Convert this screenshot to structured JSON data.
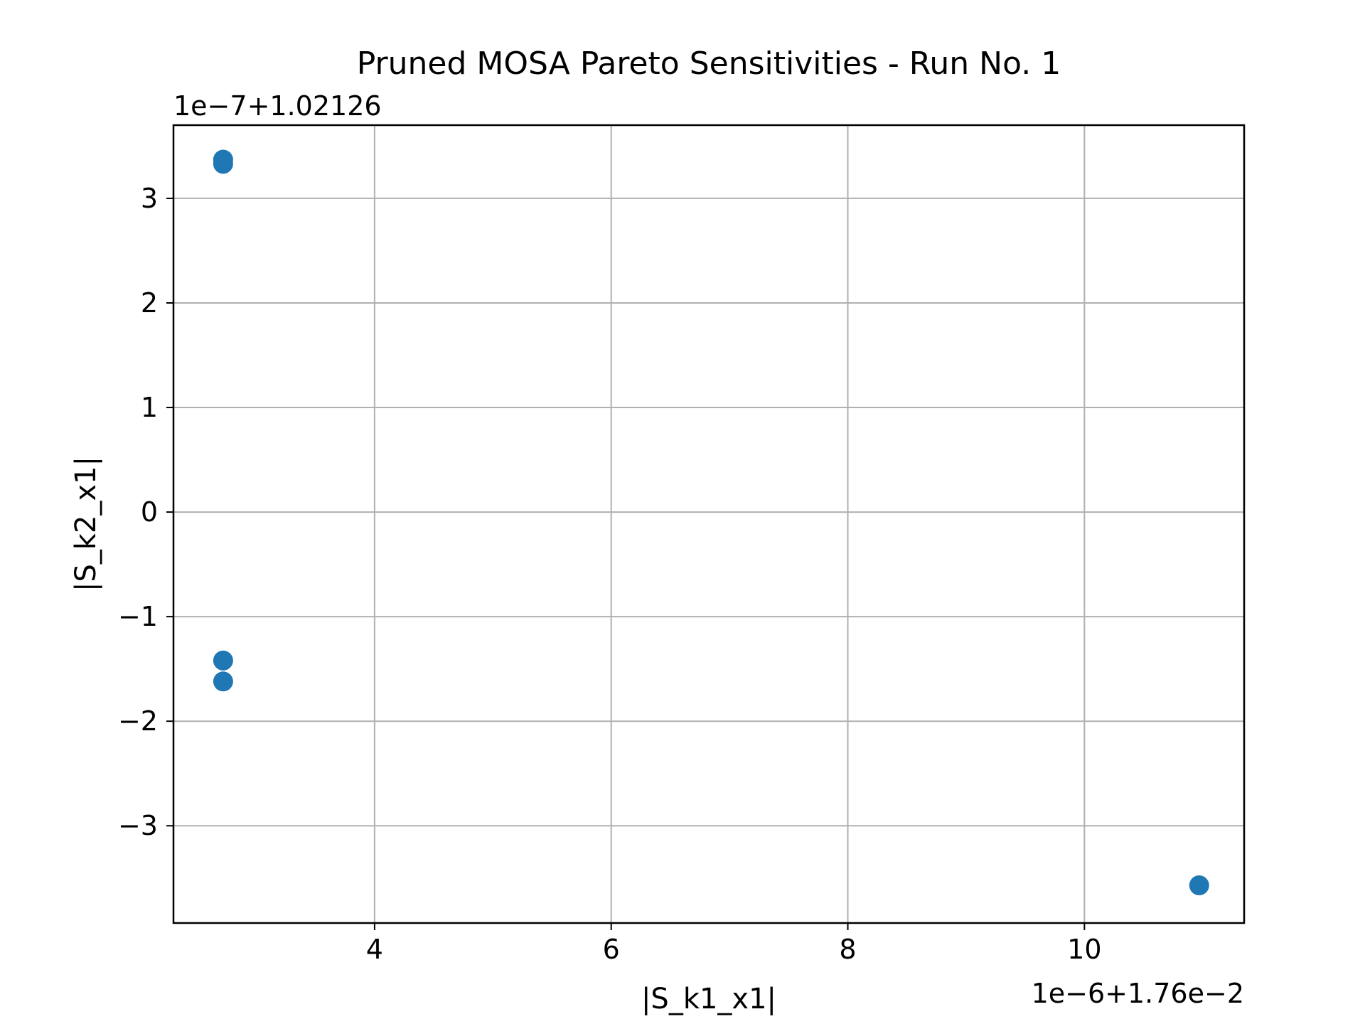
{
  "chart_data": {
    "type": "scatter",
    "title": "Pruned MOSA Pareto Sensitivities - Run No. 1",
    "xlabel": "|S_k1_x1|",
    "ylabel": "|S_k2_x1|",
    "x_offset_label": "1e−6+1.76e−2",
    "y_offset_label": "1e−7+1.02126",
    "xlim": [
      2.3,
      11.35
    ],
    "ylim": [
      -3.93,
      3.7
    ],
    "x_ticks": [
      4,
      6,
      8,
      10
    ],
    "x_tick_labels": [
      "4",
      "6",
      "8",
      "10"
    ],
    "y_ticks": [
      3,
      2,
      1,
      0,
      -1,
      -2,
      -3
    ],
    "y_tick_labels": [
      "3",
      "2",
      "1",
      "0",
      "−1",
      "−2",
      "−3"
    ],
    "grid": true,
    "color": "#1f77b4",
    "points": [
      {
        "x": 2.72,
        "y": 3.37
      },
      {
        "x": 2.72,
        "y": 3.33
      },
      {
        "x": 2.72,
        "y": -1.42
      },
      {
        "x": 2.72,
        "y": -1.62
      },
      {
        "x": 10.97,
        "y": -3.57
      }
    ]
  }
}
